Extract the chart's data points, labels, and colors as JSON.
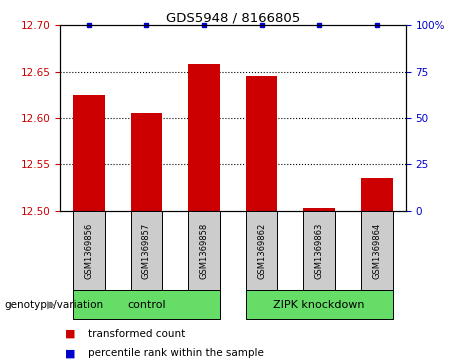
{
  "title": "GDS5948 / 8166805",
  "samples": [
    "GSM1369856",
    "GSM1369857",
    "GSM1369858",
    "GSM1369862",
    "GSM1369863",
    "GSM1369864"
  ],
  "bar_values": [
    12.625,
    12.605,
    12.658,
    12.645,
    12.503,
    12.535
  ],
  "percentile_values": [
    100,
    100,
    100,
    100,
    100,
    100
  ],
  "y_min": 12.5,
  "y_max": 12.7,
  "y_ticks": [
    12.5,
    12.55,
    12.6,
    12.65,
    12.7
  ],
  "y_right_ticks": [
    0,
    25,
    50,
    75,
    100
  ],
  "y_right_labels": [
    "0",
    "25",
    "50",
    "75",
    "100%"
  ],
  "bar_color": "#cc0000",
  "dot_color": "#0000cc",
  "groups": [
    {
      "label": "control",
      "indices": [
        0,
        1,
        2
      ],
      "color": "#66dd66"
    },
    {
      "label": "ZIPK knockdown",
      "indices": [
        3,
        4,
        5
      ],
      "color": "#66dd66"
    }
  ],
  "group_label_prefix": "genotype/variation",
  "legend_bar_label": "transformed count",
  "legend_dot_label": "percentile rank within the sample",
  "label_color_left": "#cc0000",
  "label_color_right": "#0000cc",
  "bar_width": 0.55,
  "cell_bg": "#cccccc"
}
